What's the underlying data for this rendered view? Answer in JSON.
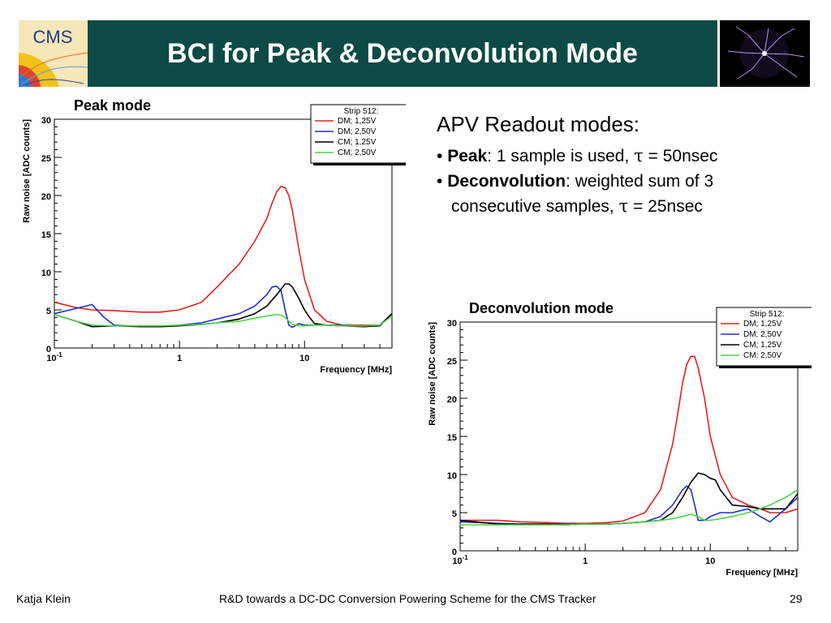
{
  "slide": {
    "title": "BCI for Peak & Deconvolution Mode",
    "logo_text": "CMS",
    "footer_author": "Katja Klein",
    "footer_title": "R&D towards a DC-DC Conversion Powering Scheme for the CMS Tracker",
    "page_number": "29"
  },
  "bullets": {
    "lead": "APV Readout modes:",
    "items": [
      {
        "term": "Peak",
        "text_before_tau": ": 1 sample is used, ",
        "tau": "τ",
        "text_after_tau": " = 50nsec"
      },
      {
        "term": "Deconvolution",
        "text": ": weighted sum of 3",
        "line2_before_tau": "consecutive  samples, ",
        "tau": "τ",
        "line2_after_tau": " = 25nsec"
      }
    ]
  },
  "colors": {
    "header_bg": "#0d4a45",
    "red": "#e8201f",
    "blue": "#1f2fd0",
    "black": "#000000",
    "green": "#4fd24a"
  },
  "chart_data": [
    {
      "type": "line",
      "title": "Peak mode",
      "xlabel": "Frequency [MHz]",
      "ylabel": "Raw noise [ADC counts]",
      "xscale": "log",
      "xlim": [
        0.1,
        50
      ],
      "ylim": [
        0,
        30
      ],
      "xticks": [
        {
          "v": 0.1,
          "label": "10",
          "sup": "-1"
        },
        {
          "v": 1,
          "label": "1",
          "sup": ""
        },
        {
          "v": 10,
          "label": "10",
          "sup": ""
        }
      ],
      "yticks": [
        0,
        5,
        10,
        15,
        20,
        25,
        30
      ],
      "legend_title": "Strip 512:",
      "legend_position": "top-right",
      "series": [
        {
          "name": "DM; 1,25V",
          "color": "#e8201f",
          "x": [
            0.1,
            0.15,
            0.2,
            0.3,
            0.5,
            0.7,
            1,
            1.5,
            2,
            3,
            4,
            5,
            5.5,
            6,
            6.5,
            7,
            7.5,
            8,
            9,
            10,
            12,
            15,
            20,
            25,
            30,
            40,
            50
          ],
          "y": [
            6,
            5.3,
            5,
            4.9,
            4.7,
            4.7,
            5,
            6,
            8,
            11,
            14,
            17,
            19,
            20.5,
            21.2,
            21,
            20,
            18,
            13,
            9,
            5,
            3.5,
            3,
            3,
            3,
            3,
            4.5
          ]
        },
        {
          "name": "DM; 2,50V",
          "color": "#1f2fd0",
          "x": [
            0.1,
            0.15,
            0.2,
            0.25,
            0.3,
            0.5,
            0.7,
            1,
            1.5,
            2,
            3,
            4,
            5,
            5.5,
            6,
            6.5,
            7,
            7.5,
            8,
            9,
            10,
            12,
            15,
            20,
            30,
            40,
            50
          ],
          "y": [
            4.5,
            5.2,
            5.7,
            4,
            3,
            2.8,
            2.8,
            3,
            3.3,
            3.8,
            4.5,
            5.5,
            7,
            8,
            8.1,
            7.5,
            5,
            3,
            2.7,
            3.2,
            3,
            3,
            3,
            3,
            2.8,
            3,
            4.5
          ]
        },
        {
          "name": "CM; 1,25V",
          "color": "#000000",
          "x": [
            0.1,
            0.15,
            0.2,
            0.3,
            0.5,
            0.7,
            1,
            1.5,
            2,
            3,
            4,
            5,
            6,
            7,
            7.5,
            8,
            9,
            10,
            11,
            12,
            15,
            20,
            30,
            40,
            50
          ],
          "y": [
            4.4,
            3.5,
            2.8,
            2.9,
            2.8,
            2.8,
            2.9,
            3.1,
            3.3,
            3.8,
            4.5,
            5.5,
            7,
            8.4,
            8.4,
            8,
            6.5,
            5,
            4,
            3.2,
            3,
            2.9,
            2.8,
            2.9,
            4.5
          ]
        },
        {
          "name": "CM; 2,50V",
          "color": "#4fd24a",
          "x": [
            0.1,
            0.15,
            0.2,
            0.3,
            0.5,
            0.7,
            1,
            1.5,
            2,
            3,
            4,
            5,
            6,
            6.5,
            7,
            7.5,
            8,
            9,
            10,
            12,
            15,
            20,
            30,
            40,
            50
          ],
          "y": [
            4.4,
            3.5,
            3,
            2.9,
            2.9,
            2.9,
            3,
            3.1,
            3.3,
            3.5,
            3.9,
            4.2,
            4.4,
            4.3,
            4,
            3.5,
            3.1,
            2.9,
            2.9,
            3,
            3,
            2.9,
            2.9,
            3,
            4.2
          ]
        }
      ]
    },
    {
      "type": "line",
      "title": "Deconvolution mode",
      "xlabel": "Frequency [MHz]",
      "ylabel": "Raw noise [ADC counts]",
      "xscale": "log",
      "xlim": [
        0.1,
        50
      ],
      "ylim": [
        0,
        30
      ],
      "xticks": [
        {
          "v": 0.1,
          "label": "10",
          "sup": "-1"
        },
        {
          "v": 1,
          "label": "1",
          "sup": ""
        },
        {
          "v": 10,
          "label": "10",
          "sup": ""
        }
      ],
      "yticks": [
        0,
        5,
        10,
        15,
        20,
        25,
        30
      ],
      "legend_title": "Strip 512:",
      "legend_position": "top-right",
      "series": [
        {
          "name": "DM; 1,25V",
          "color": "#e8201f",
          "x": [
            0.1,
            0.2,
            0.3,
            0.5,
            0.7,
            1,
            1.5,
            2,
            3,
            4,
            5,
            5.5,
            6,
            6.5,
            7,
            7.5,
            8,
            9,
            10,
            12,
            15,
            20,
            25,
            30,
            40,
            50
          ],
          "y": [
            4,
            4,
            3.8,
            3.7,
            3.6,
            3.6,
            3.7,
            3.9,
            5,
            8,
            14,
            18,
            22,
            24.5,
            25.5,
            25.5,
            24,
            20,
            15,
            10,
            7,
            6,
            5.5,
            5,
            5,
            5.5
          ]
        },
        {
          "name": "DM; 2,50V",
          "color": "#1f2fd0",
          "x": [
            0.1,
            0.2,
            0.3,
            0.5,
            0.7,
            1,
            1.5,
            2,
            3,
            4,
            5,
            6,
            6.5,
            7,
            7.5,
            8,
            9,
            10,
            12,
            15,
            20,
            25,
            30,
            40,
            50
          ],
          "y": [
            3.8,
            3.6,
            3.5,
            3.5,
            3.5,
            3.5,
            3.5,
            3.6,
            3.8,
            4.5,
            6,
            8,
            8.5,
            8,
            6,
            4,
            4,
            4.5,
            5,
            5,
            5.5,
            4.5,
            3.8,
            5.5,
            7
          ]
        },
        {
          "name": "CM; 1,25V",
          "color": "#000000",
          "x": [
            0.1,
            0.2,
            0.3,
            0.5,
            0.7,
            1,
            1.5,
            2,
            3,
            4,
            5,
            6,
            7,
            8,
            9,
            10,
            11,
            12,
            15,
            20,
            25,
            30,
            40,
            50
          ],
          "y": [
            4,
            3.5,
            3.5,
            3.5,
            3.4,
            3.5,
            3.5,
            3.6,
            3.8,
            4,
            5,
            7,
            9,
            10.2,
            10,
            9.5,
            9.3,
            8,
            6,
            5.8,
            5.5,
            5.5,
            5.5,
            7.5
          ]
        },
        {
          "name": "CM; 2,50V",
          "color": "#4fd24a",
          "x": [
            0.1,
            0.2,
            0.3,
            0.5,
            0.7,
            1,
            1.5,
            2,
            3,
            4,
            5,
            6,
            7,
            8,
            9,
            10,
            12,
            15,
            20,
            25,
            30,
            40,
            50
          ],
          "y": [
            3.4,
            3.4,
            3.4,
            3.4,
            3.4,
            3.5,
            3.5,
            3.6,
            3.8,
            4,
            4.2,
            4.5,
            4.8,
            4.5,
            4,
            4,
            4.2,
            4.5,
            5,
            5.5,
            6,
            7,
            8
          ]
        }
      ]
    }
  ]
}
